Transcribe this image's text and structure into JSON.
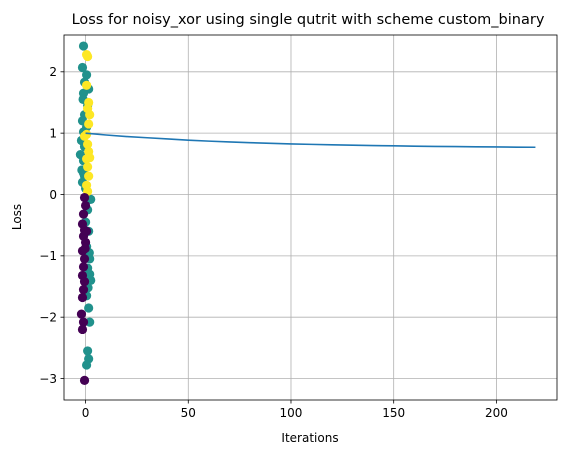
{
  "chart_data": {
    "type": "line",
    "title": "Loss for noisy_xor using single qutrit with scheme custom_binary",
    "xlabel": "Iterations",
    "ylabel": "Loss",
    "xlim": [
      -10.5,
      229.5
    ],
    "ylim": [
      -3.35,
      2.6
    ],
    "xticks": [
      0,
      50,
      100,
      150,
      200
    ],
    "yticks": [
      -3,
      -2,
      -1,
      0,
      1,
      2
    ],
    "xtick_labels": [
      "0",
      "50",
      "100",
      "150",
      "200"
    ],
    "ytick_labels": [
      "−3",
      "−2",
      "−1",
      "0",
      "1",
      "2"
    ],
    "grid": true,
    "legend": "none",
    "series": [
      {
        "color": "#1f77b4",
        "x": [
          0,
          10,
          20,
          30,
          40,
          50,
          60,
          70,
          80,
          90,
          100,
          110,
          120,
          130,
          140,
          150,
          160,
          170,
          180,
          190,
          200,
          210,
          219
        ],
        "y": [
          1.0,
          0.97,
          0.945,
          0.925,
          0.905,
          0.885,
          0.87,
          0.857,
          0.845,
          0.834,
          0.825,
          0.817,
          0.81,
          0.804,
          0.798,
          0.793,
          0.788,
          0.784,
          0.781,
          0.778,
          0.775,
          0.772,
          0.77
        ]
      }
    ],
    "scatter": {
      "colors": {
        "0": "#440154",
        "1": "#21918c",
        "2": "#fde725"
      },
      "points": [
        {
          "x": -1.0,
          "y": 2.42,
          "c": 1
        },
        {
          "x": -1.5,
          "y": 2.07,
          "c": 1
        },
        {
          "x": 0.5,
          "y": 1.95,
          "c": 1
        },
        {
          "x": -0.5,
          "y": 1.83,
          "c": 1
        },
        {
          "x": 1.5,
          "y": 1.72,
          "c": 1
        },
        {
          "x": -1.0,
          "y": 1.65,
          "c": 1
        },
        {
          "x": -1.2,
          "y": 1.55,
          "c": 1
        },
        {
          "x": 1.0,
          "y": 1.45,
          "c": 1
        },
        {
          "x": -0.5,
          "y": 1.3,
          "c": 1
        },
        {
          "x": -1.5,
          "y": 1.2,
          "c": 1
        },
        {
          "x": 0.5,
          "y": 1.1,
          "c": 1
        },
        {
          "x": -1.0,
          "y": 1.02,
          "c": 1
        },
        {
          "x": -2.0,
          "y": 0.88,
          "c": 1
        },
        {
          "x": -0.5,
          "y": 0.78,
          "c": 1
        },
        {
          "x": -2.5,
          "y": 0.65,
          "c": 1
        },
        {
          "x": -1.0,
          "y": 0.55,
          "c": 1
        },
        {
          "x": -1.8,
          "y": 0.4,
          "c": 1
        },
        {
          "x": -0.5,
          "y": 0.3,
          "c": 1
        },
        {
          "x": -1.5,
          "y": 0.2,
          "c": 1
        },
        {
          "x": 0.0,
          "y": 0.1,
          "c": 1
        },
        {
          "x": -1.0,
          "y": 0.35,
          "c": 1
        },
        {
          "x": 2.5,
          "y": -0.08,
          "c": 1
        },
        {
          "x": 1.0,
          "y": -0.25,
          "c": 1
        },
        {
          "x": 0.0,
          "y": -0.45,
          "c": 1
        },
        {
          "x": 1.5,
          "y": -0.6,
          "c": 1
        },
        {
          "x": 0.5,
          "y": -0.85,
          "c": 1
        },
        {
          "x": 2.0,
          "y": -1.05,
          "c": 1
        },
        {
          "x": 1.0,
          "y": -1.2,
          "c": 1
        },
        {
          "x": 2.5,
          "y": -1.4,
          "c": 1
        },
        {
          "x": 1.2,
          "y": -1.52,
          "c": 1
        },
        {
          "x": 0.5,
          "y": -1.65,
          "c": 1
        },
        {
          "x": 1.5,
          "y": -1.85,
          "c": 1
        },
        {
          "x": 2.0,
          "y": -2.08,
          "c": 1
        },
        {
          "x": 1.0,
          "y": -2.55,
          "c": 1
        },
        {
          "x": 1.5,
          "y": -2.68,
          "c": 1
        },
        {
          "x": 0.5,
          "y": -2.78,
          "c": 1
        },
        {
          "x": 2.0,
          "y": -1.3,
          "c": 1
        },
        {
          "x": 1.8,
          "y": -0.95,
          "c": 1
        },
        {
          "x": 0.5,
          "y": 2.28,
          "c": 2
        },
        {
          "x": 1.0,
          "y": 2.25,
          "c": 2
        },
        {
          "x": 0.5,
          "y": 1.78,
          "c": 2
        },
        {
          "x": 1.5,
          "y": 1.5,
          "c": 2
        },
        {
          "x": 1.0,
          "y": 1.4,
          "c": 2
        },
        {
          "x": 2.0,
          "y": 1.3,
          "c": 2
        },
        {
          "x": 1.5,
          "y": 1.15,
          "c": 2
        },
        {
          "x": 0.5,
          "y": 0.98,
          "c": 2
        },
        {
          "x": 1.0,
          "y": 0.82,
          "c": 2
        },
        {
          "x": 1.5,
          "y": 0.7,
          "c": 2
        },
        {
          "x": 0.5,
          "y": 0.58,
          "c": 2
        },
        {
          "x": 1.0,
          "y": 0.45,
          "c": 2
        },
        {
          "x": 1.5,
          "y": 0.3,
          "c": 2
        },
        {
          "x": 0.5,
          "y": 0.15,
          "c": 2
        },
        {
          "x": 1.0,
          "y": 0.05,
          "c": 2
        },
        {
          "x": -0.5,
          "y": 0.95,
          "c": 2
        },
        {
          "x": 2.0,
          "y": 0.6,
          "c": 2
        },
        {
          "x": -0.5,
          "y": -0.05,
          "c": 0
        },
        {
          "x": 0.0,
          "y": -0.18,
          "c": 0
        },
        {
          "x": -1.0,
          "y": -0.32,
          "c": 0
        },
        {
          "x": -1.5,
          "y": -0.48,
          "c": 0
        },
        {
          "x": -0.5,
          "y": -0.58,
          "c": 0
        },
        {
          "x": -1.0,
          "y": -0.68,
          "c": 0
        },
        {
          "x": 0.0,
          "y": -0.78,
          "c": 0
        },
        {
          "x": -1.5,
          "y": -0.92,
          "c": 0
        },
        {
          "x": -0.5,
          "y": -1.05,
          "c": 0
        },
        {
          "x": -1.0,
          "y": -1.18,
          "c": 0
        },
        {
          "x": -1.5,
          "y": -1.32,
          "c": 0
        },
        {
          "x": -0.5,
          "y": -1.42,
          "c": 0
        },
        {
          "x": -1.0,
          "y": -1.55,
          "c": 0
        },
        {
          "x": -1.5,
          "y": -1.68,
          "c": 0
        },
        {
          "x": -2.0,
          "y": -1.95,
          "c": 0
        },
        {
          "x": -1.0,
          "y": -2.08,
          "c": 0
        },
        {
          "x": -1.5,
          "y": -2.2,
          "c": 0
        },
        {
          "x": -0.5,
          "y": -3.03,
          "c": 0
        },
        {
          "x": 0.5,
          "y": -0.6,
          "c": 0
        },
        {
          "x": -0.2,
          "y": -0.88,
          "c": 0
        }
      ]
    }
  }
}
